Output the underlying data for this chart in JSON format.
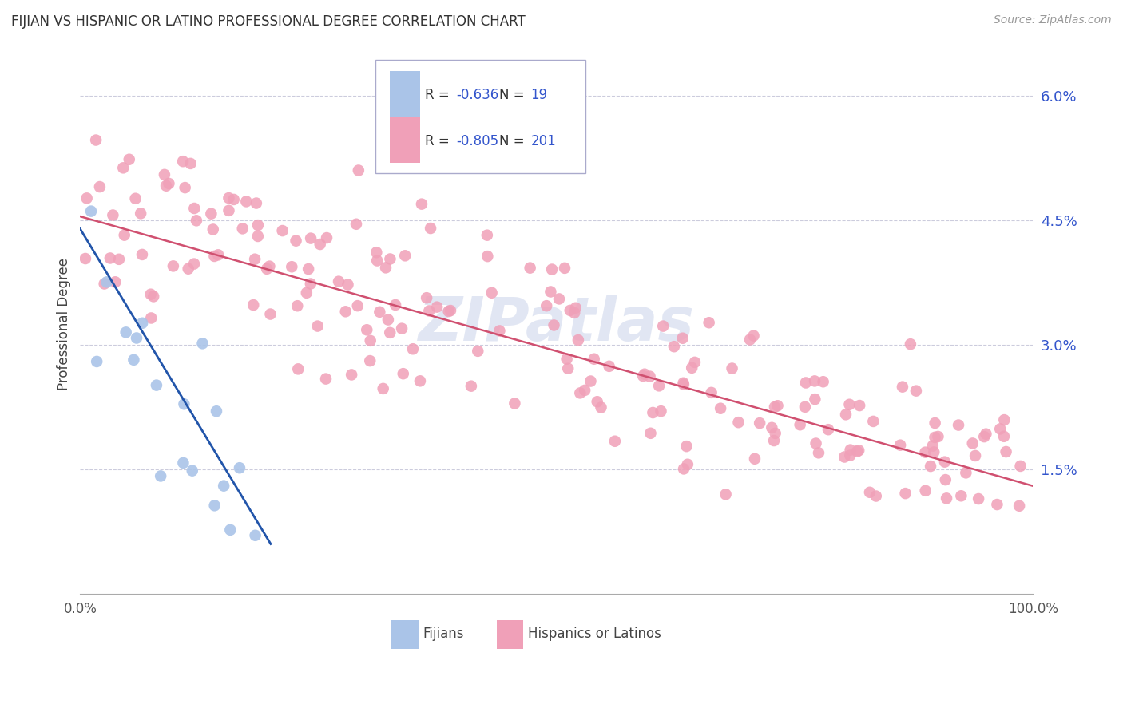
{
  "title": "FIJIAN VS HISPANIC OR LATINO PROFESSIONAL DEGREE CORRELATION CHART",
  "source": "Source: ZipAtlas.com",
  "ylabel": "Professional Degree",
  "legend_label1": "Fijians",
  "legend_label2": "Hispanics or Latinos",
  "fijian_color": "#aac4e8",
  "hispanic_color": "#f0a0b8",
  "fijian_line_color": "#2255aa",
  "hispanic_line_color": "#d05070",
  "watermark": "ZIPatlas",
  "xmin": 0.0,
  "xmax": 100.0,
  "ymin": 0.0,
  "ymax": 6.5,
  "yticks": [
    1.5,
    3.0,
    4.5,
    6.0
  ],
  "ytick_labels": [
    "1.5%",
    "3.0%",
    "4.5%",
    "6.0%"
  ],
  "background_color": "#ffffff",
  "grid_color": "#ccccdd",
  "fijian_seed": 77,
  "hispanic_seed": 42,
  "fijian_n": 19,
  "hispanic_n": 201,
  "fijian_x_max": 20.0,
  "fijian_slope": -0.19,
  "fijian_intercept": 4.4,
  "fijian_noise": 0.65,
  "hisp_slope": -0.0325,
  "hisp_intercept": 4.55,
  "hisp_noise": 0.55,
  "legend_blue_text": "#3355cc",
  "legend_pink_text": "#3355cc"
}
